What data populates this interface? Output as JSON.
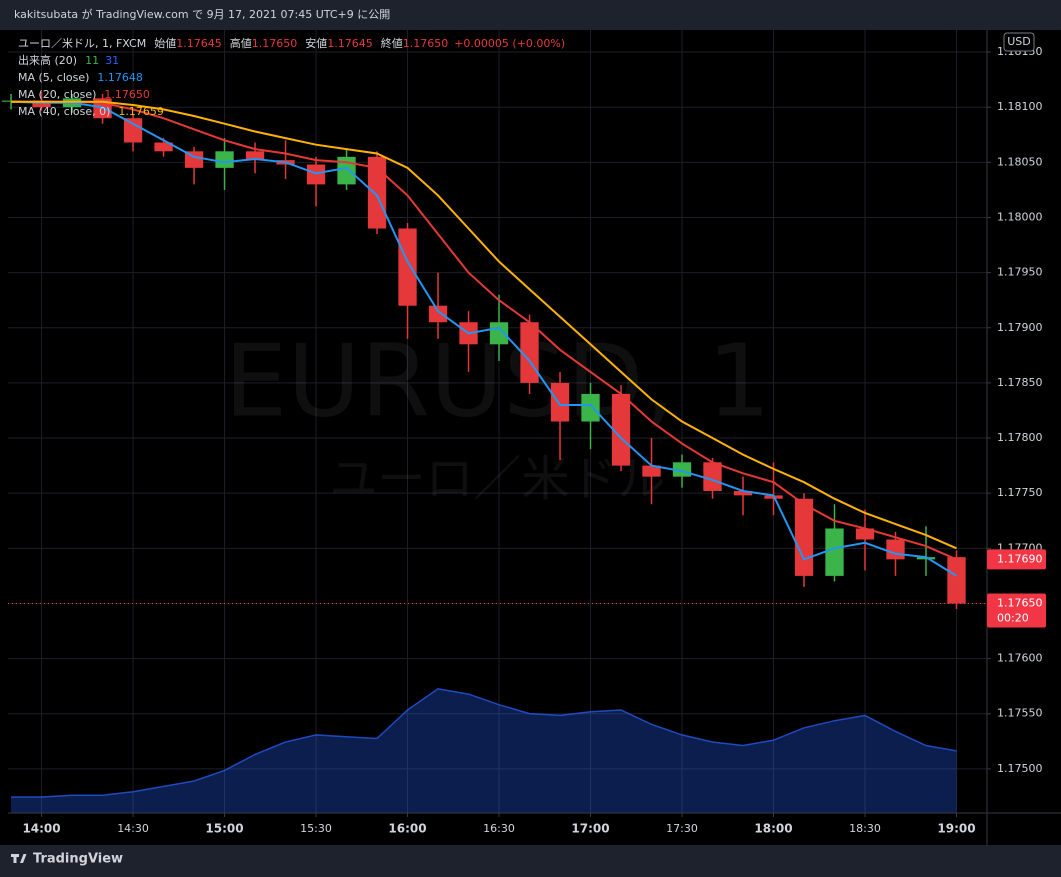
{
  "chart_data": {
    "type": "candlestick",
    "header": "kakitsubata が TradingView.com で 9月 17, 2021 07:45 UTC+9 に公開",
    "symbol": "ユーロ／米ドル, 1, FXCM",
    "ohlc_legend": [
      {
        "name": "始値",
        "value": 1.17645,
        "label": "1.17645"
      },
      {
        "name": "高値",
        "value": 1.1765,
        "label": "1.17650"
      },
      {
        "name": "安値",
        "value": 1.17645,
        "label": "1.17645"
      },
      {
        "name": "終値",
        "value": 1.1765,
        "label": "1.17650"
      }
    ],
    "change": "+0.00005 (+0.00%)",
    "watermark": "EURUSD, 1",
    "watermark_sub": "ユーロ／米ドル",
    "currency": "USD",
    "up_color": "#3bb44a",
    "down_color": "#e5383b",
    "x": [
      830,
      840,
      850,
      860,
      870,
      880,
      890,
      900,
      910,
      920,
      930,
      940,
      950,
      960,
      970,
      980,
      990,
      1000,
      1010,
      1020,
      1030,
      1040,
      1050,
      1060,
      1070,
      1080,
      1090,
      1100,
      1110,
      1120,
      1130,
      1140
    ],
    "open": [
      1.18105,
      1.18106,
      1.181,
      1.18108,
      1.1809,
      1.18068,
      1.1806,
      1.18045,
      1.1806,
      1.18052,
      1.18048,
      1.1803,
      1.18055,
      1.1799,
      1.1792,
      1.17905,
      1.17885,
      1.17905,
      1.1785,
      1.17815,
      1.1784,
      1.17775,
      1.17765,
      1.17778,
      1.17752,
      1.17748,
      1.17745,
      1.17675,
      1.17718,
      1.17708,
      1.1769,
      1.17692
    ],
    "high": [
      1.18112,
      1.18114,
      1.18112,
      1.18112,
      1.18094,
      1.18072,
      1.18064,
      1.18072,
      1.18068,
      1.1807,
      1.18055,
      1.18062,
      1.1806,
      1.17995,
      1.1795,
      1.17915,
      1.1793,
      1.17912,
      1.1786,
      1.1785,
      1.17848,
      1.178,
      1.17785,
      1.17782,
      1.17765,
      1.17778,
      1.1775,
      1.1774,
      1.17735,
      1.17715,
      1.1772,
      1.17698
    ],
    "low": [
      1.18098,
      1.18097,
      1.18095,
      1.18085,
      1.1806,
      1.18055,
      1.1803,
      1.18025,
      1.1804,
      1.18035,
      1.1801,
      1.18025,
      1.17985,
      1.1789,
      1.1789,
      1.1786,
      1.1787,
      1.1784,
      1.1778,
      1.1779,
      1.1777,
      1.1774,
      1.17755,
      1.17745,
      1.1773,
      1.1773,
      1.17665,
      1.1767,
      1.1768,
      1.17675,
      1.17675,
      1.17645
    ],
    "close": [
      1.18106,
      1.181,
      1.18108,
      1.1809,
      1.18068,
      1.1806,
      1.18045,
      1.1806,
      1.18052,
      1.18048,
      1.1803,
      1.18055,
      1.1799,
      1.1792,
      1.17905,
      1.17885,
      1.17905,
      1.1785,
      1.17815,
      1.1784,
      1.17775,
      1.17765,
      1.17778,
      1.17752,
      1.17748,
      1.17745,
      1.17675,
      1.17718,
      1.17708,
      1.1769,
      1.17692,
      1.1765
    ],
    "series": [
      {
        "name": "MA (5, close)",
        "color": "#2196f3",
        "value": 1.17648,
        "value_label": "1.17648",
        "values": [
          1.18105,
          1.18104,
          1.18104,
          1.181,
          1.18085,
          1.1807,
          1.18055,
          1.1805,
          1.18053,
          1.1805,
          1.1804,
          1.18045,
          1.1802,
          1.1796,
          1.17915,
          1.17895,
          1.179,
          1.1787,
          1.1783,
          1.1783,
          1.178,
          1.17775,
          1.1777,
          1.17762,
          1.17752,
          1.17748,
          1.1769,
          1.177,
          1.17705,
          1.17695,
          1.17692,
          1.17675
        ]
      },
      {
        "name": "MA (20, close)",
        "color": "#e53935",
        "value": 1.1765,
        "value_label": "1.17650",
        "values": [
          1.18105,
          1.18105,
          1.18105,
          1.18104,
          1.18098,
          1.1809,
          1.1808,
          1.1807,
          1.18062,
          1.18058,
          1.18052,
          1.1805,
          1.18045,
          1.1802,
          1.17985,
          1.1795,
          1.17925,
          1.17905,
          1.1788,
          1.1786,
          1.1784,
          1.17815,
          1.17795,
          1.17778,
          1.17768,
          1.1776,
          1.1774,
          1.17725,
          1.17718,
          1.1771,
          1.17702,
          1.1769
        ]
      },
      {
        "name": "MA (40, close, 0)",
        "color": "#ffb300",
        "value": 1.17659,
        "value_label": "1.17659",
        "values": [
          1.18105,
          1.18105,
          1.18105,
          1.18105,
          1.18102,
          1.18098,
          1.18092,
          1.18085,
          1.18078,
          1.18072,
          1.18066,
          1.18062,
          1.18058,
          1.18045,
          1.1802,
          1.1799,
          1.1796,
          1.17935,
          1.1791,
          1.17885,
          1.1786,
          1.17835,
          1.17815,
          1.178,
          1.17785,
          1.17772,
          1.1776,
          1.17745,
          1.17732,
          1.17722,
          1.17712,
          1.177
        ]
      }
    ],
    "volume": {
      "name": "出来高 (20)",
      "last": 11,
      "last_color": "#3bb44a",
      "ma_last": 31,
      "color": "#2962ff",
      "vlim": [
        0,
        120
      ],
      "values": [
        9,
        9,
        10,
        10,
        12,
        15,
        18,
        24,
        33,
        40,
        44,
        43,
        42,
        58,
        70,
        67,
        61,
        56,
        55,
        57,
        58,
        50,
        44,
        40,
        38,
        41,
        48,
        52,
        55,
        46,
        38,
        35
      ]
    },
    "xlim": [
      829,
      1150
    ],
    "xticks": [
      {
        "value": 840,
        "label": "14:00"
      },
      {
        "value": 870,
        "label": "14:30"
      },
      {
        "value": 900,
        "label": "15:00"
      },
      {
        "value": 930,
        "label": "15:30"
      },
      {
        "value": 960,
        "label": "16:00"
      },
      {
        "value": 990,
        "label": "16:30"
      },
      {
        "value": 1020,
        "label": "17:00"
      },
      {
        "value": 1050,
        "label": "17:30"
      },
      {
        "value": 1080,
        "label": "18:00"
      },
      {
        "value": 1110,
        "label": "18:30"
      },
      {
        "value": 1140,
        "label": "19:00"
      }
    ],
    "ylim": [
      1.1746,
      1.1817
    ],
    "yticks": [
      {
        "value": 1.175,
        "label": "1.17500"
      },
      {
        "value": 1.1755,
        "label": "1.17550"
      },
      {
        "value": 1.176,
        "label": "1.17600"
      },
      {
        "value": 1.1765,
        "label": "1.17650"
      },
      {
        "value": 1.177,
        "label": "1.17700"
      },
      {
        "value": 1.1775,
        "label": "1.17750"
      },
      {
        "value": 1.178,
        "label": "1.17800"
      },
      {
        "value": 1.1785,
        "label": "1.17850"
      },
      {
        "value": 1.179,
        "label": "1.17900"
      },
      {
        "value": 1.1795,
        "label": "1.17950"
      },
      {
        "value": 1.18,
        "label": "1.18000"
      },
      {
        "value": 1.1805,
        "label": "1.18050"
      },
      {
        "value": 1.181,
        "label": "1.18100"
      },
      {
        "value": 1.1815,
        "label": "1.18150"
      }
    ],
    "grid": true,
    "price_tags": [
      {
        "value": 1.1769,
        "label": "1.17690",
        "color": "#f23645"
      },
      {
        "value": 1.1765,
        "label": "1.17650",
        "color": "#f23645",
        "countdown": "00:20"
      }
    ],
    "brand": "TradingView"
  }
}
